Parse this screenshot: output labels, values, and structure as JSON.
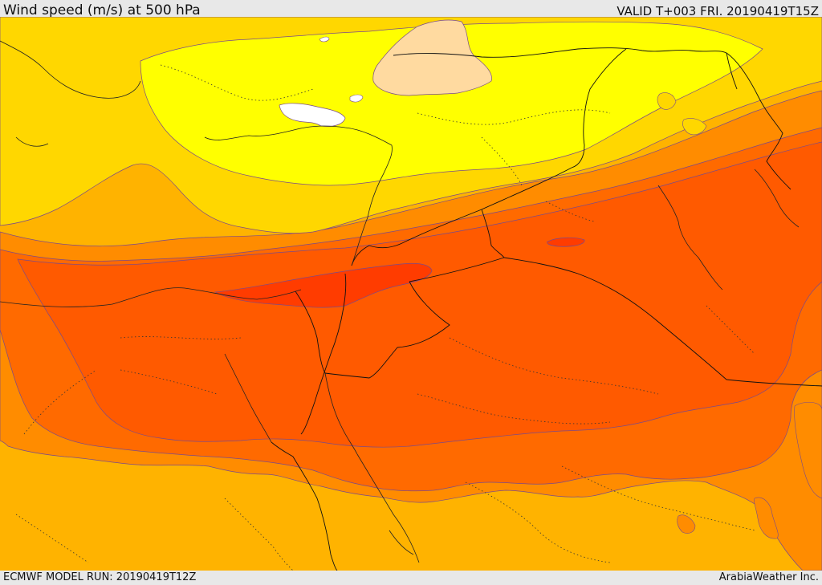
{
  "header": {
    "title": "Wind speed (m/s) at 500 hPa",
    "valid": "VALID T+003 FRI. 20190419T15Z"
  },
  "footer": {
    "model_run": "ECMWF MODEL RUN: 20190419T12Z",
    "credit": "ArabiaWeather Inc."
  },
  "colors": {
    "deep_yellow_orange": "#ffb300",
    "orange": "#ff8c00",
    "dark_orange": "#ff6a00",
    "red_orange": "#ff5a00",
    "core_red": "#ff3c00",
    "gold": "#ffd700",
    "yellow": "#ffff00",
    "peach": "#ffdaa0",
    "white": "#ffffff"
  }
}
